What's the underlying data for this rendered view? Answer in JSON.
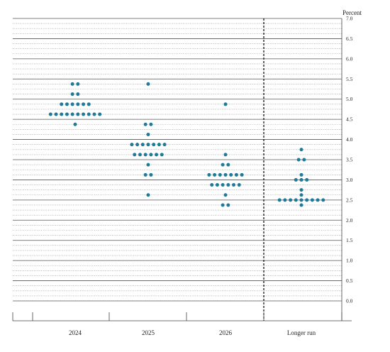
{
  "chart_data": {
    "type": "scatter",
    "title": "",
    "ylabel": "Percent",
    "xlabel": "",
    "ylim": [
      0,
      7
    ],
    "y_ticks": [
      7.0,
      6.5,
      6.0,
      5.5,
      5.0,
      4.5,
      4.0,
      3.5,
      3.0,
      2.5,
      2.0,
      1.5,
      1.0,
      0.5,
      0.0
    ],
    "y_tick_labels": [
      "7.0",
      "6.5",
      "6.0",
      "5.5",
      "5.0",
      "4.5",
      "4.0",
      "3.5",
      "3.0",
      "2.5",
      "2.0",
      "1.5",
      "1.0",
      "0.5",
      "0.0"
    ],
    "grid": "horizontal lines at each 0.125 step (solid at whole/half-percent, dotted between)",
    "dot_color": "#1f7a99",
    "categories": [
      "2024",
      "2025",
      "2026",
      "Longer run"
    ],
    "separator_before": "Longer run",
    "series": [
      {
        "category": "2024",
        "points": [
          {
            "y": 5.375,
            "count": 2
          },
          {
            "y": 5.125,
            "count": 2
          },
          {
            "y": 4.875,
            "count": 6
          },
          {
            "y": 4.625,
            "count": 10
          },
          {
            "y": 4.375,
            "count": 1
          }
        ]
      },
      {
        "category": "2025",
        "points": [
          {
            "y": 5.375,
            "count": 1
          },
          {
            "y": 4.375,
            "count": 2
          },
          {
            "y": 4.125,
            "count": 1
          },
          {
            "y": 3.875,
            "count": 7
          },
          {
            "y": 3.625,
            "count": 6
          },
          {
            "y": 3.375,
            "count": 1
          },
          {
            "y": 3.125,
            "count": 2
          },
          {
            "y": 2.625,
            "count": 1
          }
        ]
      },
      {
        "category": "2026",
        "points": [
          {
            "y": 4.875,
            "count": 1
          },
          {
            "y": 3.625,
            "count": 1
          },
          {
            "y": 3.375,
            "count": 2
          },
          {
            "y": 3.125,
            "count": 7
          },
          {
            "y": 2.875,
            "count": 6
          },
          {
            "y": 2.625,
            "count": 1
          },
          {
            "y": 2.375,
            "count": 2
          }
        ]
      },
      {
        "category": "Longer run",
        "points": [
          {
            "y": 3.75,
            "count": 1
          },
          {
            "y": 3.5,
            "count": 2
          },
          {
            "y": 3.125,
            "count": 1
          },
          {
            "y": 3.0,
            "count": 3
          },
          {
            "y": 2.75,
            "count": 1
          },
          {
            "y": 2.625,
            "count": 1
          },
          {
            "y": 2.5,
            "count": 9
          },
          {
            "y": 2.375,
            "count": 1
          }
        ]
      }
    ]
  }
}
